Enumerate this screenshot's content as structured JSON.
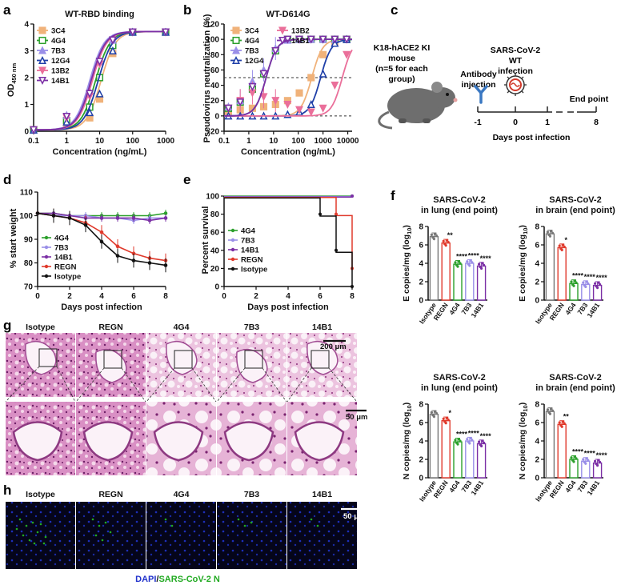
{
  "panel_letters": [
    "a",
    "b",
    "c",
    "d",
    "e",
    "f",
    "g",
    "h"
  ],
  "chart_data": [
    {
      "id": "a",
      "type": "line",
      "title": "WT-RBD binding",
      "xlabel": "Concentration  (ng/mL)",
      "ylabel": "OD450 nm",
      "ylabel_main": "OD",
      "ylabel_sub": "450 nm",
      "xscale": "log",
      "xlim": [
        0.1,
        1000
      ],
      "ylim": [
        0,
        4
      ],
      "xticks": [
        "0.1",
        "1",
        "10",
        "100",
        "1000"
      ],
      "xtick_values": [
        0.1,
        1,
        10,
        100,
        1000
      ],
      "yticks": [
        "0",
        "1",
        "2",
        "3",
        "4"
      ],
      "ytick_values": [
        0,
        1,
        2,
        3,
        4
      ],
      "x": [
        0.1,
        1,
        5,
        10,
        25,
        100,
        1000
      ],
      "series": [
        {
          "name": "3C4",
          "color": "#f0b27a",
          "marker": "square",
          "ec50": 11,
          "values": [
            0.05,
            0.3,
            0.5,
            1.2,
            2.9,
            3.7,
            3.7
          ]
        },
        {
          "name": "4G4",
          "color": "#2ca02c",
          "marker": "square-open",
          "ec50": 7.5,
          "values": [
            0.05,
            0.4,
            0.9,
            2.0,
            3.2,
            3.7,
            3.7
          ]
        },
        {
          "name": "7B3",
          "color": "#9a8fe8",
          "marker": "triangle",
          "ec50": 5,
          "values": [
            0.05,
            0.6,
            1.5,
            2.6,
            3.4,
            3.7,
            3.7
          ]
        },
        {
          "name": "12G4",
          "color": "#1f3fa8",
          "marker": "triangle-open",
          "ec50": 9,
          "values": [
            0.05,
            0.35,
            0.7,
            1.4,
            3.0,
            3.7,
            3.7
          ]
        },
        {
          "name": "13B2",
          "color": "#ea6f9a",
          "marker": "triangle-down",
          "ec50": 6,
          "values": [
            0.05,
            0.5,
            1.3,
            2.5,
            3.4,
            3.7,
            3.7
          ]
        },
        {
          "name": "14B1",
          "color": "#7b2fa5",
          "marker": "triangle-down-open",
          "ec50": 5.5,
          "values": [
            0.05,
            0.55,
            1.4,
            2.6,
            3.4,
            3.7,
            3.7
          ]
        }
      ]
    },
    {
      "id": "b",
      "type": "line",
      "title": "WT-D614G",
      "xlabel": "Concentration  (ng/mL)",
      "ylabel": "Pseudovirus neutralization (%)",
      "xscale": "log",
      "xlim": [
        0.1,
        15000
      ],
      "ylim": [
        -20,
        120
      ],
      "xticks": [
        "0.1",
        "1",
        "10",
        "100",
        "1000",
        "10000"
      ],
      "xtick_values": [
        0.1,
        1,
        10,
        100,
        1000,
        10000
      ],
      "yticks": [
        "-20",
        "0",
        "20",
        "40",
        "60",
        "80",
        "100",
        "120"
      ],
      "ytick_values": [
        -20,
        0,
        20,
        40,
        60,
        80,
        100,
        120
      ],
      "reference_lines": [
        50,
        0
      ],
      "x": [
        0.15,
        0.45,
        1.4,
        4,
        12,
        37,
        110,
        330,
        1000,
        3000,
        9000
      ],
      "series": [
        {
          "name": "3C4",
          "color": "#f0b27a",
          "marker": "square",
          "ec50": 350,
          "values": [
            5,
            8,
            10,
            12,
            15,
            20,
            30,
            50,
            80,
            97,
            100
          ]
        },
        {
          "name": "4G4",
          "color": "#2ca02c",
          "marker": "square-open",
          "ec50": 5,
          "values": [
            10,
            18,
            35,
            55,
            85,
            100,
            100,
            100,
            100,
            100,
            100
          ]
        },
        {
          "name": "7B3",
          "color": "#9a8fe8",
          "marker": "triangle",
          "ec50": 5,
          "values": [
            12,
            20,
            45,
            60,
            88,
            99,
            100,
            100,
            100,
            100,
            100
          ]
        },
        {
          "name": "12G4",
          "color": "#1f3fa8",
          "marker": "triangle-open",
          "ec50": 800,
          "values": [
            0,
            0,
            0,
            0,
            0,
            2,
            5,
            15,
            55,
            95,
            100
          ]
        },
        {
          "name": "13B2",
          "color": "#ea6f9a",
          "marker": "triangle-down",
          "ec50": 6000,
          "values": [
            10,
            20,
            30,
            25,
            20,
            15,
            8,
            5,
            10,
            40,
            80
          ]
        },
        {
          "name": "14B1",
          "color": "#7b2fa5",
          "marker": "triangle-down-open",
          "ec50": 5,
          "values": [
            10,
            18,
            38,
            55,
            85,
            100,
            100,
            100,
            100,
            100,
            100
          ]
        }
      ]
    },
    {
      "id": "d",
      "type": "line",
      "xlabel": "Days post infection",
      "ylabel": "% start weight",
      "xlim": [
        0,
        8
      ],
      "ylim": [
        70,
        110
      ],
      "xticks": [
        "0",
        "2",
        "4",
        "6",
        "8"
      ],
      "xtick_values": [
        0,
        2,
        4,
        6,
        8
      ],
      "yticks": [
        "70",
        "80",
        "90",
        "100",
        "110"
      ],
      "ytick_values": [
        70,
        80,
        90,
        100,
        110
      ],
      "x": [
        0,
        1,
        2,
        3,
        4,
        5,
        6,
        7,
        8
      ],
      "series": [
        {
          "name": "4G4",
          "color": "#2ca02c",
          "values": [
            101,
            101,
            100,
            100,
            100,
            100,
            100,
            100,
            101
          ]
        },
        {
          "name": "7B3",
          "color": "#9a8fe8",
          "values": [
            101,
            100,
            100,
            100,
            99,
            99,
            98,
            99,
            99
          ]
        },
        {
          "name": "14B1",
          "color": "#7b2fa5",
          "values": [
            101,
            101,
            100,
            99,
            99,
            99,
            99,
            98,
            99
          ]
        },
        {
          "name": "REGN",
          "color": "#e03a2c",
          "values": [
            101,
            100,
            99,
            97,
            93,
            87,
            84,
            82,
            81
          ]
        },
        {
          "name": "Isotype",
          "color": "#111111",
          "values": [
            101,
            100,
            99,
            96,
            89,
            83,
            81,
            80,
            79
          ]
        }
      ]
    },
    {
      "id": "e",
      "type": "line",
      "step": true,
      "xlabel": "Days post infection",
      "ylabel": "Percent survival",
      "xlim": [
        0,
        8
      ],
      "ylim": [
        0,
        100
      ],
      "xticks": [
        "0",
        "2",
        "4",
        "6",
        "8"
      ],
      "xtick_values": [
        0,
        2,
        4,
        6,
        8
      ],
      "yticks": [
        "0",
        "20",
        "40",
        "60",
        "80",
        "100"
      ],
      "ytick_values": [
        0,
        20,
        40,
        60,
        80,
        100
      ],
      "series": [
        {
          "name": "4G4",
          "color": "#2ca02c",
          "x": [
            0,
            8
          ],
          "values": [
            100,
            100
          ]
        },
        {
          "name": "7B3",
          "color": "#9a8fe8",
          "x": [
            0,
            8
          ],
          "values": [
            100,
            100
          ]
        },
        {
          "name": "14B1",
          "color": "#7b2fa5",
          "x": [
            0,
            8
          ],
          "values": [
            100,
            100
          ]
        },
        {
          "name": "REGN",
          "color": "#e03a2c",
          "x": [
            0,
            7,
            7,
            8,
            8
          ],
          "values": [
            100,
            100,
            80,
            80,
            20
          ]
        },
        {
          "name": "Isotype",
          "color": "#111111",
          "x": [
            0,
            6,
            6,
            7,
            7,
            8,
            8
          ],
          "values": [
            100,
            100,
            80,
            80,
            40,
            40,
            0
          ]
        }
      ]
    },
    {
      "id": "f1",
      "type": "bar",
      "title": "SARS-CoV-2",
      "subtitle": "in lung (end point)",
      "ylabel": "E copies/mg (log10)",
      "ylabel_main": "E copies/mg (log",
      "ylabel_sub": "10",
      "ylabel_end": ")",
      "ylim": [
        0,
        8
      ],
      "yticks": [
        "0",
        "2",
        "4",
        "6",
        "8"
      ],
      "ytick_values": [
        0,
        2,
        4,
        6,
        8
      ],
      "categories": [
        "Isotype",
        "REGN",
        "4G4",
        "7B3",
        "14B1"
      ],
      "colors": [
        "#777777",
        "#e03a2c",
        "#2ca02c",
        "#9a8fe8",
        "#7b2fa5"
      ],
      "values": [
        6.9,
        6.2,
        3.9,
        4.0,
        3.7
      ],
      "significance": [
        "",
        "**",
        "****",
        "****",
        "****"
      ]
    },
    {
      "id": "f2",
      "type": "bar",
      "title": "SARS-CoV-2",
      "subtitle": "in brain (end point)",
      "ylabel": "E copies/mg (log10)",
      "ylabel_main": "E copies/mg (log",
      "ylabel_sub": "10",
      "ylabel_end": ")",
      "ylim": [
        0,
        8
      ],
      "yticks": [
        "0",
        "2",
        "4",
        "6",
        "8"
      ],
      "ytick_values": [
        0,
        2,
        4,
        6,
        8
      ],
      "categories": [
        "Isotype",
        "REGN",
        "4G4",
        "7B3",
        "14B1"
      ],
      "colors": [
        "#777777",
        "#e03a2c",
        "#2ca02c",
        "#9a8fe8",
        "#7b2fa5"
      ],
      "values": [
        7.2,
        5.7,
        1.8,
        1.7,
        1.6
      ],
      "significance": [
        "",
        "*",
        "****",
        "****",
        "****"
      ]
    },
    {
      "id": "f3",
      "type": "bar",
      "title": "SARS-CoV-2",
      "subtitle": "in lung (end point)",
      "ylabel": "N copies/mg (log10)",
      "ylabel_main": "N copies/mg (log",
      "ylabel_sub": "10",
      "ylabel_end": ")",
      "ylim": [
        0,
        8
      ],
      "yticks": [
        "0",
        "2",
        "4",
        "6",
        "8"
      ],
      "ytick_values": [
        0,
        2,
        4,
        6,
        8
      ],
      "categories": [
        "Isotype",
        "REGN",
        "4G4",
        "7B3",
        "14B1"
      ],
      "colors": [
        "#777777",
        "#e03a2c",
        "#2ca02c",
        "#9a8fe8",
        "#7b2fa5"
      ],
      "values": [
        6.9,
        6.2,
        3.9,
        4.0,
        3.7
      ],
      "significance": [
        "",
        "*",
        "****",
        "****",
        "****"
      ]
    },
    {
      "id": "f4",
      "type": "bar",
      "title": "SARS-CoV-2",
      "subtitle": "in brain (end point)",
      "ylabel": "N copies/mg (log10)",
      "ylabel_main": "N copies/mg (log",
      "ylabel_sub": "10",
      "ylabel_end": ")",
      "ylim": [
        0,
        8
      ],
      "yticks": [
        "0",
        "2",
        "4",
        "6",
        "8"
      ],
      "ytick_values": [
        0,
        2,
        4,
        6,
        8
      ],
      "categories": [
        "Isotype",
        "REGN",
        "4G4",
        "7B3",
        "14B1"
      ],
      "colors": [
        "#777777",
        "#e03a2c",
        "#2ca02c",
        "#9a8fe8",
        "#7b2fa5"
      ],
      "values": [
        7.2,
        5.8,
        2.0,
        1.8,
        1.6
      ],
      "significance": [
        "",
        "**",
        "****",
        "****",
        "****"
      ]
    }
  ],
  "schematic": {
    "mouse_label_lines": [
      "K18-hACE2 KI",
      "mouse",
      "(n=5 for each",
      "group)"
    ],
    "antibody_label_lines": [
      "Antibody",
      "injection"
    ],
    "virus_label_lines": [
      "SARS-CoV-2",
      "WT",
      "infection"
    ],
    "endpoint_label": "End point",
    "timeline_ticks": [
      "-1",
      "0",
      "1",
      "8"
    ],
    "timeline_label": "Days post infection"
  },
  "histology": {
    "groups": [
      "Isotype",
      "REGN",
      "4G4",
      "7B3",
      "14B1"
    ],
    "scale_top": "200 μm",
    "scale_bottom": "50 μm"
  },
  "fluorescence": {
    "groups": [
      "Isotype",
      "REGN",
      "4G4",
      "7B3",
      "14B1"
    ],
    "scale": "50 μm",
    "caption_dapi": "DAPI",
    "caption_sep": "/",
    "caption_n": "SARS-CoV-2 N",
    "dapi_color": "#2233cc",
    "n_color": "#22aa22"
  }
}
